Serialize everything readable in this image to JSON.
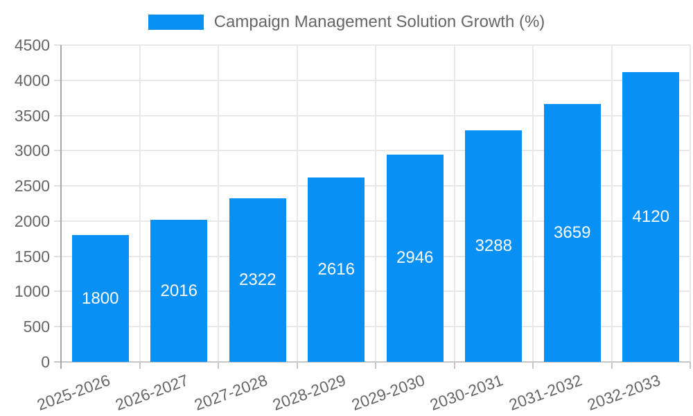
{
  "chart_data": {
    "type": "bar",
    "title": "Campaign Management Solution Growth (%)",
    "legend_label": "Campaign Management Solution Growth (%)",
    "categories": [
      "2025-2026",
      "2026-2027",
      "2027-2028",
      "2028-2029",
      "2029-2030",
      "2030-2031",
      "2031-2032",
      "2032-2033"
    ],
    "series": [
      {
        "name": "Campaign Management Solution Growth (%)",
        "values": [
          1800,
          2016,
          2322,
          2616,
          2946,
          3288,
          3659,
          4120
        ]
      }
    ],
    "value_labels": [
      "1800",
      "2016",
      "2322",
      "2616",
      "2946",
      "3288",
      "3659",
      "4120"
    ],
    "xlabel": "",
    "ylabel": "",
    "ylim": [
      0,
      4500
    ],
    "ytick_step": 500,
    "yticks": [
      0,
      500,
      1000,
      1500,
      2000,
      2500,
      3000,
      3500,
      4000,
      4500
    ],
    "grid": true,
    "legend_position": "top",
    "x_label_rotation_deg": -20,
    "colors": {
      "bar": "#0990F5",
      "value_label": "#FFFFFF",
      "axis_text": "#666666",
      "gridline": "#E8E8E8",
      "axis_border_y": "#A6A6A6",
      "axis_border_x": "#C6C6C6",
      "background": "#FFFFFF"
    }
  }
}
